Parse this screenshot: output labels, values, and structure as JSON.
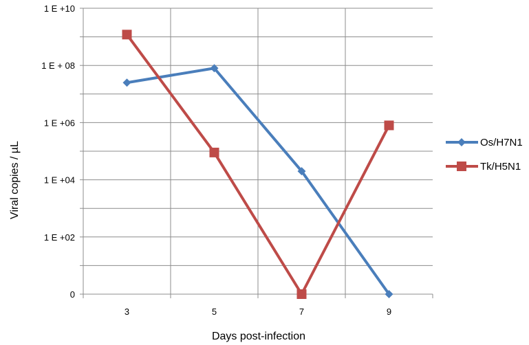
{
  "chart_data": {
    "type": "line",
    "xlabel": "Days post-infection",
    "ylabel": "Viral copies / µL",
    "categories": [
      "3",
      "5",
      "7",
      "9"
    ],
    "yscale": "log",
    "ylim": [
      1,
      10000000000
    ],
    "yticks": [
      {
        "value": 1,
        "label": "0"
      },
      {
        "value": 100,
        "label": "1 E +02"
      },
      {
        "value": 10000,
        "label": "1 E +04"
      },
      {
        "value": 1000000,
        "label": "1 E +06"
      },
      {
        "value": 100000000,
        "label": "1 E + 08"
      },
      {
        "value": 10000000000,
        "label": "1 E +10"
      }
    ],
    "grid": true,
    "legend_position": "right",
    "series": [
      {
        "name": "Os/H7N1",
        "color": "#4a7ebb",
        "marker": "diamond",
        "values": [
          25000000,
          80000000,
          20000,
          1
        ]
      },
      {
        "name": "Tk/H5N1",
        "color": "#be4b48",
        "marker": "square",
        "values": [
          1200000000,
          90000,
          1,
          800000
        ]
      }
    ]
  }
}
